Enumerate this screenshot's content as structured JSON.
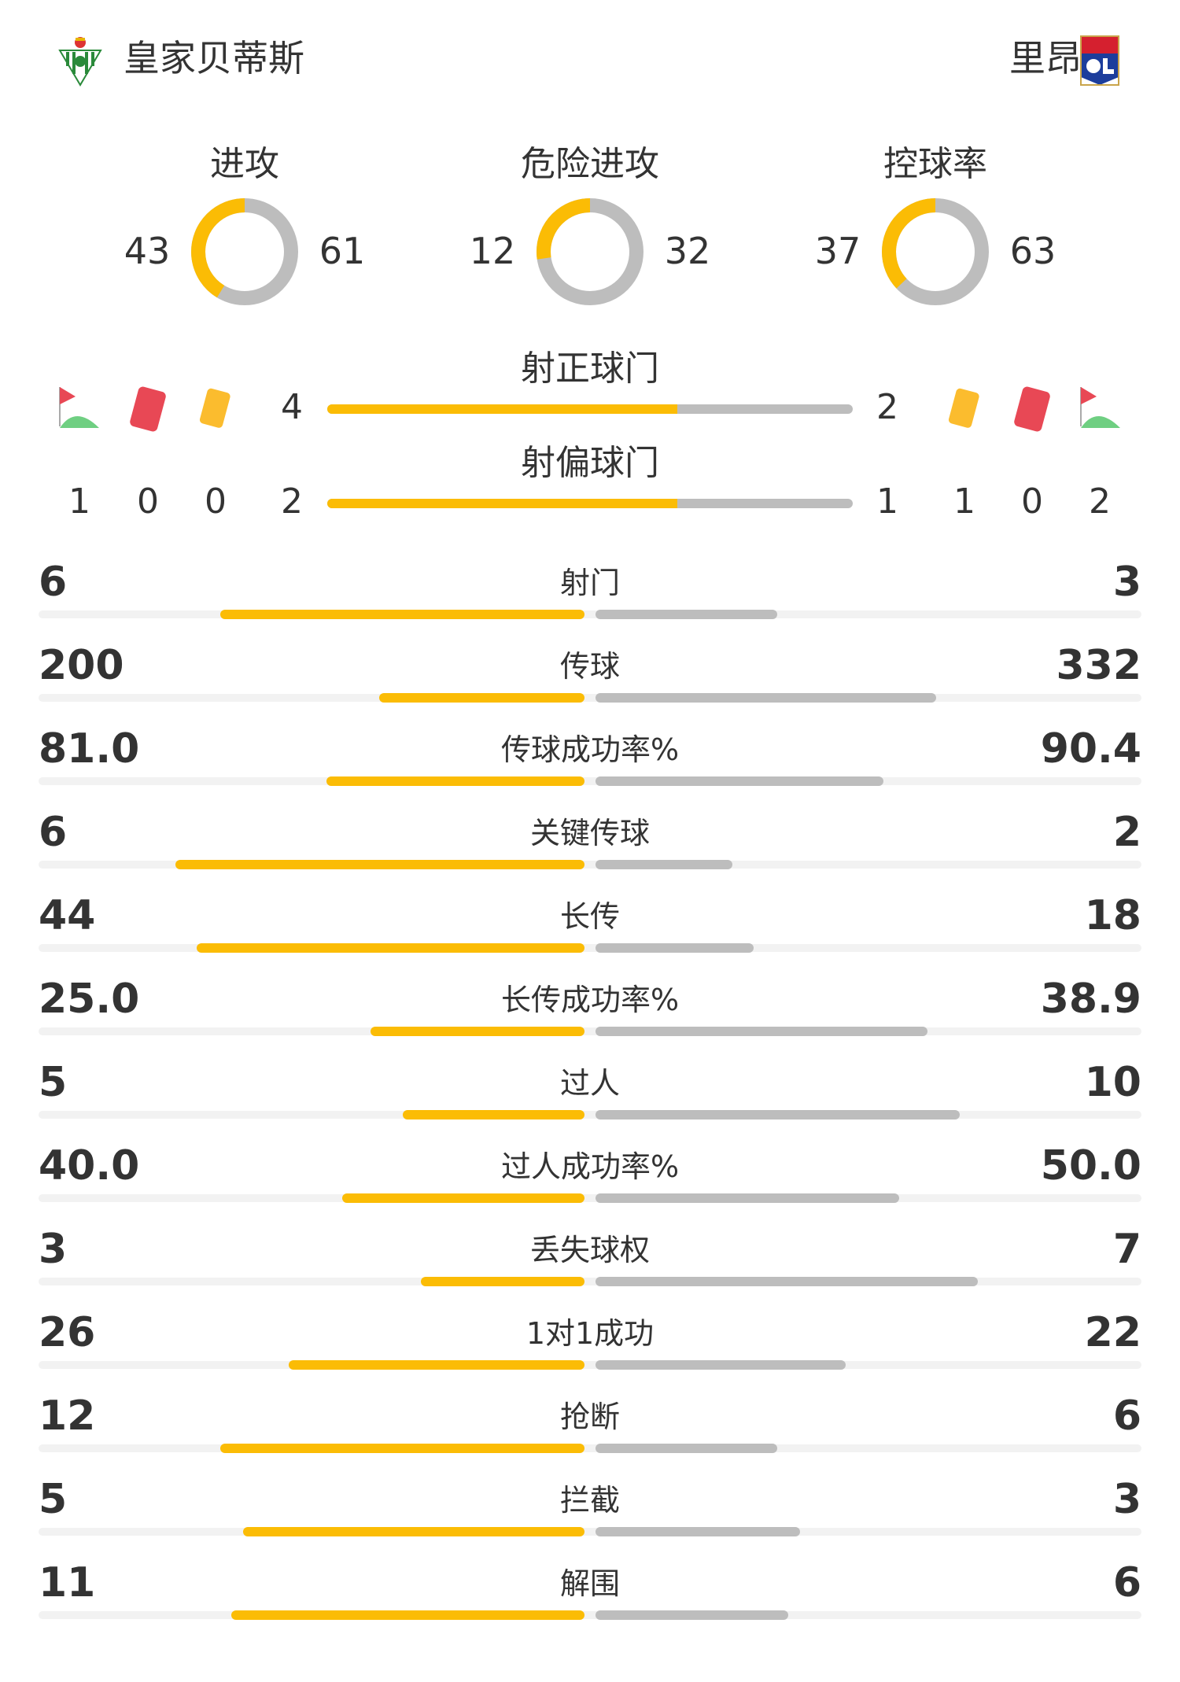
{
  "home": {
    "name": "皇家贝蒂斯",
    "logo": "real-betis-crest"
  },
  "away": {
    "name": "里昂",
    "logo": "olympique-lyonnais-crest",
    "logo_text": "OLYMPIQUE LYONNAIS"
  },
  "colors": {
    "home": "#fbbc05",
    "away": "#bdbdbd"
  },
  "circles": [
    {
      "label": "进攻",
      "home": 43,
      "away": 61
    },
    {
      "label": "危险进攻",
      "home": 12,
      "away": 32
    },
    {
      "label": "控球率",
      "home": 37,
      "away": 63
    }
  ],
  "shots_on": {
    "label": "射正球门",
    "home": 4,
    "away": 2
  },
  "shots_off": {
    "label": "射偏球门",
    "home": 2,
    "away": 1
  },
  "home_counts": {
    "corners": 1,
    "red_cards": 0,
    "yellow_cards": 0
  },
  "away_counts": {
    "yellow_cards": 1,
    "red_cards": 0,
    "corners": 2
  },
  "stats": [
    {
      "label": "射门",
      "home": "6",
      "away": "3"
    },
    {
      "label": "传球",
      "home": "200",
      "away": "332"
    },
    {
      "label": "传球成功率%",
      "home": "81.0",
      "away": "90.4"
    },
    {
      "label": "关键传球",
      "home": "6",
      "away": "2"
    },
    {
      "label": "长传",
      "home": "44",
      "away": "18"
    },
    {
      "label": "长传成功率%",
      "home": "25.0",
      "away": "38.9"
    },
    {
      "label": "过人",
      "home": "5",
      "away": "10"
    },
    {
      "label": "过人成功率%",
      "home": "40.0",
      "away": "50.0"
    },
    {
      "label": "丢失球权",
      "home": "3",
      "away": "7"
    },
    {
      "label": "1对1成功",
      "home": "26",
      "away": "22"
    },
    {
      "label": "抢断",
      "home": "12",
      "away": "6"
    },
    {
      "label": "拦截",
      "home": "5",
      "away": "3"
    },
    {
      "label": "解围",
      "home": "11",
      "away": "6"
    }
  ]
}
